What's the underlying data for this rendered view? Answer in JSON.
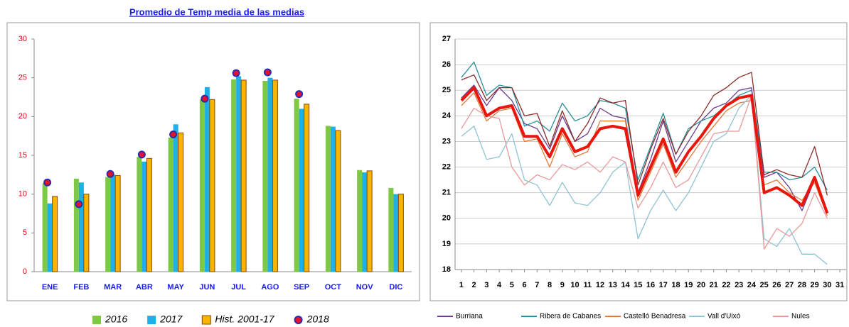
{
  "chart_data": [
    {
      "type": "bar",
      "title": "Promedio de Temp media de las medias",
      "categories": [
        "ENE",
        "FEB",
        "MAR",
        "ABR",
        "MAY",
        "JUN",
        "JUL",
        "AGO",
        "SEP",
        "OCT",
        "NOV",
        "DIC"
      ],
      "series": [
        {
          "name": "2016",
          "color": "#7dc943",
          "values": [
            11.4,
            12.0,
            12.2,
            14.8,
            17.3,
            22.2,
            24.8,
            24.6,
            22.3,
            18.8,
            13.1,
            10.8
          ]
        },
        {
          "name": "2017",
          "color": "#1fb0e8",
          "values": [
            8.8,
            11.5,
            12.5,
            14.2,
            19.0,
            23.8,
            25.2,
            25.0,
            21.0,
            18.7,
            12.8,
            10.0
          ]
        },
        {
          "name": "Hist. 2001-17",
          "color": "#f7b500",
          "values": [
            9.7,
            10.0,
            12.4,
            14.6,
            17.9,
            22.2,
            24.7,
            24.7,
            21.6,
            18.2,
            13.0,
            10.0
          ]
        },
        {
          "name": "2018",
          "color": "#e8102a",
          "style": "marker",
          "values": [
            11.5,
            8.7,
            12.6,
            15.1,
            17.7,
            22.3,
            25.6,
            25.7,
            22.9,
            null,
            null,
            null
          ]
        }
      ],
      "ylim": [
        0,
        30
      ],
      "yticks": [
        0,
        5,
        10,
        15,
        20,
        25,
        30
      ],
      "legend": "bottom"
    },
    {
      "type": "line",
      "x": [
        1,
        2,
        3,
        4,
        5,
        6,
        7,
        8,
        9,
        10,
        11,
        12,
        13,
        14,
        15,
        16,
        17,
        18,
        19,
        20,
        21,
        22,
        23,
        24,
        25,
        26,
        27,
        28,
        29,
        30
      ],
      "xlim": [
        0.5,
        31.5
      ],
      "xticks": [
        1,
        2,
        3,
        4,
        5,
        6,
        7,
        8,
        9,
        10,
        11,
        12,
        13,
        14,
        15,
        16,
        17,
        18,
        19,
        20,
        21,
        22,
        23,
        24,
        25,
        26,
        27,
        28,
        29,
        30,
        31
      ],
      "ylim": [
        18,
        27
      ],
      "yticks": [
        18,
        19,
        20,
        21,
        22,
        23,
        24,
        25,
        26,
        27
      ],
      "grid": true,
      "legend": "bottom",
      "series": [
        {
          "name": "Burriana",
          "color": "#6a3d8f",
          "values": [
            24.7,
            25.2,
            24.4,
            25.1,
            24.6,
            23.7,
            23.5,
            22.7,
            24.0,
            23.0,
            23.3,
            24.3,
            24.0,
            23.9,
            21.0,
            22.3,
            23.8,
            22.2,
            23.0,
            23.8,
            24.3,
            24.5,
            25.0,
            25.1,
            21.6,
            21.8,
            21.2,
            20.3,
            21.5,
            20.3
          ]
        },
        {
          "name": "Ribera de Cabanes",
          "color": "#2a8f9e",
          "values": [
            25.5,
            26.1,
            24.8,
            25.2,
            25.1,
            23.6,
            23.8,
            23.4,
            24.5,
            23.8,
            24.0,
            24.6,
            24.5,
            24.3,
            21.5,
            22.8,
            24.1,
            22.5,
            23.5,
            23.8,
            24.0,
            24.4,
            24.8,
            25.0,
            21.8,
            21.8,
            21.5,
            21.6,
            22.0,
            21.1
          ]
        },
        {
          "name": "Castelló Benadresa",
          "color": "#e07b39",
          "values": [
            24.4,
            24.9,
            23.8,
            24.2,
            24.3,
            23.0,
            23.1,
            22.0,
            23.3,
            22.4,
            22.6,
            23.8,
            23.8,
            23.8,
            20.7,
            21.8,
            22.9,
            21.6,
            22.3,
            23.0,
            23.6,
            24.2,
            24.5,
            24.6,
            21.3,
            21.5,
            21.0,
            20.7,
            21.4,
            20.1
          ]
        },
        {
          "name": "Vall d'Uixó",
          "color": "#8ec3d4",
          "values": [
            23.2,
            23.6,
            22.3,
            22.4,
            23.3,
            21.5,
            21.3,
            20.5,
            21.4,
            20.6,
            20.5,
            21.0,
            21.8,
            22.2,
            19.2,
            20.3,
            21.1,
            20.3,
            21.0,
            22.0,
            23.0,
            23.3,
            24.3,
            24.8,
            19.2,
            18.9,
            19.6,
            18.6,
            18.6,
            18.2
          ]
        },
        {
          "name": "Nules",
          "color": "#e89a9a",
          "values": [
            23.5,
            24.3,
            24.0,
            23.9,
            22.0,
            21.3,
            21.7,
            21.5,
            22.1,
            21.9,
            22.2,
            21.8,
            22.4,
            22.2,
            20.4,
            21.2,
            22.2,
            21.2,
            21.5,
            22.4,
            23.3,
            23.4,
            23.4,
            24.8,
            18.8,
            19.6,
            19.3,
            19.8,
            21.0,
            20.0
          ]
        },
        {
          "color": "#8b2b2b",
          "values": [
            25.4,
            25.6,
            24.6,
            25.1,
            25.1,
            24.0,
            24.1,
            22.8,
            24.2,
            23.0,
            23.7,
            24.7,
            24.5,
            24.6,
            21.3,
            22.7,
            23.9,
            22.5,
            23.4,
            24.0,
            24.8,
            25.1,
            25.5,
            25.7,
            21.7,
            21.9,
            21.7,
            21.6,
            22.8,
            20.9
          ]
        },
        {
          "color": "#e8160c",
          "width": 4,
          "values": [
            24.6,
            25.1,
            24.0,
            24.3,
            24.4,
            23.2,
            23.2,
            22.4,
            23.5,
            22.6,
            22.8,
            23.5,
            23.6,
            23.5,
            20.9,
            22.0,
            23.1,
            21.8,
            22.6,
            23.2,
            23.9,
            24.4,
            24.7,
            24.8,
            21.0,
            21.2,
            20.9,
            20.5,
            21.6,
            20.2
          ]
        }
      ]
    }
  ]
}
